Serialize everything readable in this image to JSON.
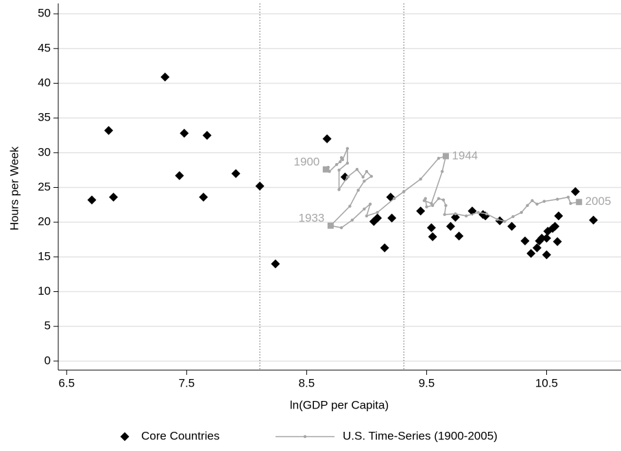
{
  "chart_data": {
    "type": "scatter",
    "xlabel": "ln(GDP per Capita)",
    "ylabel": "Hours per Week",
    "xlim": [
      6.43,
      11.12
    ],
    "ylim": [
      -1.3,
      51
    ],
    "xticks": [
      6.5,
      7.5,
      8.5,
      9.5,
      10.5
    ],
    "yticks": [
      0,
      5,
      10,
      15,
      20,
      25,
      30,
      35,
      40,
      45,
      50
    ],
    "grid": true,
    "vlines": [
      8.11,
      9.31
    ],
    "legend": "bottom",
    "series": [
      {
        "name": "Core Countries",
        "mode": "markers",
        "color": "#000000",
        "x": [
          6.71,
          6.85,
          6.89,
          7.32,
          7.48,
          7.44,
          7.67,
          7.64,
          7.91,
          8.11,
          8.24,
          8.67,
          8.82,
          9.2,
          9.21,
          9.06,
          9.09,
          9.15,
          9.45,
          9.54,
          9.55,
          9.7,
          9.74,
          9.77,
          9.88,
          9.97,
          9.99,
          10.11,
          10.21,
          10.32,
          10.37,
          10.42,
          10.44,
          10.46,
          10.5,
          10.5,
          10.51,
          10.55,
          10.57,
          10.59,
          10.6,
          10.74,
          10.89
        ],
        "values": [
          23.2,
          33.2,
          23.6,
          40.9,
          32.8,
          26.7,
          32.5,
          23.6,
          27.0,
          25.2,
          14.0,
          32.0,
          26.5,
          23.6,
          20.6,
          20.1,
          20.6,
          16.3,
          21.6,
          19.2,
          17.9,
          19.4,
          20.7,
          18.0,
          21.6,
          21.1,
          20.9,
          20.2,
          19.4,
          17.3,
          15.5,
          16.3,
          17.3,
          17.7,
          17.7,
          15.3,
          18.7,
          19.1,
          19.4,
          17.2,
          20.9,
          24.4,
          20.3
        ]
      },
      {
        "name": "U.S. Time-Series (1900-2005)",
        "mode": "lines",
        "color": "#a6a6a6",
        "x": [
          8.66,
          8.68,
          8.69,
          8.75,
          8.78,
          8.79,
          8.8,
          8.84,
          8.84,
          8.77,
          8.77,
          8.84,
          8.92,
          8.97,
          9.0,
          9.04,
          8.98,
          8.93,
          8.86,
          8.7,
          8.79,
          8.88,
          8.98,
          9.03,
          9.0,
          9.09,
          9.23,
          9.31,
          9.45,
          9.6,
          9.66,
          9.63,
          9.54,
          9.48,
          9.49,
          9.5,
          9.55,
          9.6,
          9.64,
          9.66,
          9.65,
          9.74,
          9.83,
          9.93,
          10.0,
          10.09,
          10.15,
          10.22,
          10.29,
          10.34,
          10.38,
          10.42,
          10.48,
          10.59,
          10.68,
          10.7,
          10.77
        ],
        "values": [
          27.6,
          27.9,
          27.3,
          28.3,
          28.7,
          29.3,
          29.0,
          30.6,
          28.5,
          27.5,
          24.7,
          26.5,
          27.6,
          26.5,
          27.3,
          26.6,
          25.9,
          24.6,
          22.3,
          19.5,
          19.2,
          20.3,
          21.9,
          22.6,
          20.9,
          21.4,
          23.4,
          24.4,
          26.2,
          29.2,
          29.5,
          27.3,
          22.7,
          23.1,
          23.4,
          22.2,
          22.4,
          23.4,
          23.2,
          22.4,
          21.1,
          21.2,
          20.9,
          21.4,
          21.2,
          20.4,
          20.1,
          20.8,
          21.4,
          22.4,
          23.1,
          22.6,
          23.0,
          23.3,
          23.6,
          22.7,
          22.9
        ],
        "labels": [
          "1900",
          null,
          null,
          null,
          null,
          null,
          null,
          null,
          null,
          null,
          null,
          null,
          null,
          null,
          null,
          null,
          null,
          null,
          null,
          "1933",
          null,
          null,
          null,
          null,
          null,
          null,
          null,
          null,
          null,
          null,
          "1944",
          null,
          null,
          null,
          null,
          null,
          null,
          null,
          null,
          null,
          null,
          null,
          null,
          null,
          null,
          null,
          null,
          null,
          null,
          null,
          null,
          null,
          null,
          null,
          null,
          null,
          "2005"
        ]
      }
    ]
  }
}
